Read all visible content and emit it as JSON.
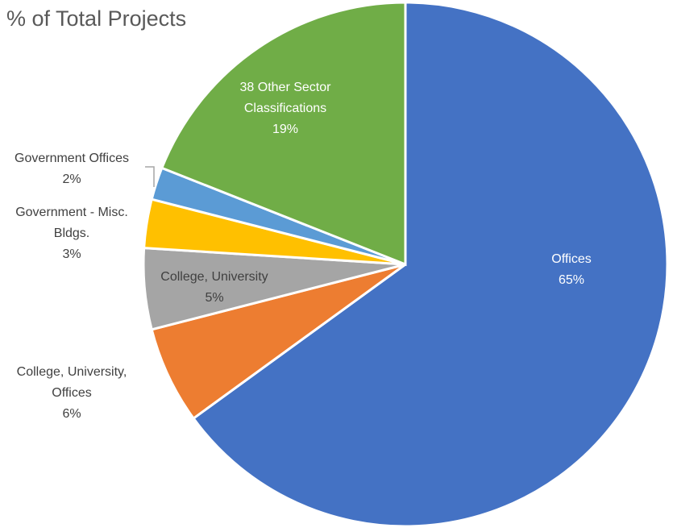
{
  "chart_data": {
    "type": "pie",
    "title": "% of Total Projects",
    "slices": [
      {
        "label_lines": [
          "Offices"
        ],
        "value": 65,
        "value_label": "65%",
        "color": "#4472C4",
        "label_color": "#ffffff"
      },
      {
        "label_lines": [
          "College, University,",
          "Offices"
        ],
        "value": 6,
        "value_label": "6%",
        "color": "#ED7D31",
        "label_color": "#404040"
      },
      {
        "label_lines": [
          "College, University"
        ],
        "value": 5,
        "value_label": "5%",
        "color": "#A5A5A5",
        "label_color": "#404040"
      },
      {
        "label_lines": [
          "Government - Misc.",
          "Bldgs."
        ],
        "value": 3,
        "value_label": "3%",
        "color": "#FFC000",
        "label_color": "#404040"
      },
      {
        "label_lines": [
          "Government Offices"
        ],
        "value": 2,
        "value_label": "2%",
        "color": "#5B9BD5",
        "label_color": "#404040"
      },
      {
        "label_lines": [
          "38 Other Sector",
          "Classifications"
        ],
        "value": 19,
        "value_label": "19%",
        "color": "#70AD47",
        "label_color": "#ffffff"
      }
    ],
    "legend": "none"
  }
}
